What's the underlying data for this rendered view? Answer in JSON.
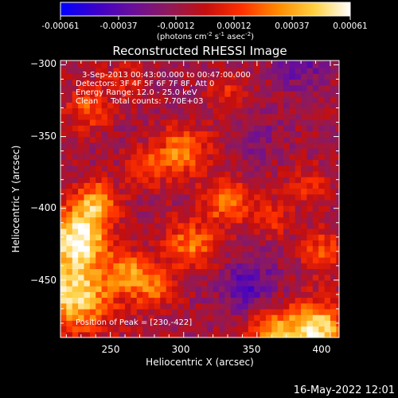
{
  "colorbar": {
    "ticks": [
      "-0.00061",
      "-0.00037",
      "-0.00012",
      "0.00012",
      "0.00037",
      "0.00061"
    ],
    "unit_main": "(photons cm",
    "unit_sup1": "-2",
    "unit_mid1": " s",
    "unit_sup2": "-1",
    "unit_mid2": " asec",
    "unit_sup3": "-2",
    "unit_end": ")",
    "colors": [
      "#0000ff",
      "#3d00c8",
      "#6a0f9a",
      "#8f1a5a",
      "#c40f0f",
      "#ff3000",
      "#ff8a00",
      "#ffd040",
      "#ffffff"
    ]
  },
  "chart_data": {
    "type": "heatmap",
    "title": "Reconstructed RHESSI Image",
    "xlabel": "Heliocentric X (arcsec)",
    "ylabel": "Heliocentric Y (arcsec)",
    "xlim": [
      216,
      406
    ],
    "ylim": [
      -490,
      -297
    ],
    "x_ticks": [
      250,
      300,
      350,
      400
    ],
    "y_ticks": [
      -300,
      -350,
      -400,
      -450
    ],
    "x_tick_labels": [
      "250",
      "300",
      "350",
      "400"
    ],
    "y_tick_labels": [
      "−300",
      "−350",
      "−400",
      "−450"
    ],
    "info_lines": [
      "3-Sep-2013 00:43:00.000 to 00:47:00.000",
      "Detectors: 3F 4F 5F 6F 7F 8F, Att 0",
      "Energy Range: 12.0 - 25.0 keV",
      "Clean     Total counts: 7.70E+03"
    ],
    "peak_label": "Position of Peak = [230,-422]",
    "peak": [
      230,
      -422
    ],
    "blobs": [
      {
        "x": 228,
        "y": -420,
        "amp": 1.0,
        "s": 14
      },
      {
        "x": 225,
        "y": -460,
        "amp": 0.9,
        "s": 18
      },
      {
        "x": 240,
        "y": -395,
        "amp": 0.65,
        "s": 10
      },
      {
        "x": 262,
        "y": -445,
        "amp": 0.55,
        "s": 10
      },
      {
        "x": 390,
        "y": -485,
        "amp": 0.95,
        "s": 14
      },
      {
        "x": 360,
        "y": -485,
        "amp": 0.6,
        "s": 12
      },
      {
        "x": 300,
        "y": -360,
        "amp": 0.6,
        "s": 12
      },
      {
        "x": 275,
        "y": -370,
        "amp": 0.45,
        "s": 9
      },
      {
        "x": 330,
        "y": -395,
        "amp": 0.55,
        "s": 11
      },
      {
        "x": 235,
        "y": -330,
        "amp": 0.45,
        "s": 10
      },
      {
        "x": 305,
        "y": -425,
        "amp": 0.55,
        "s": 12
      },
      {
        "x": 280,
        "y": -455,
        "amp": 0.45,
        "s": 10
      },
      {
        "x": 395,
        "y": -430,
        "amp": 0.45,
        "s": 10
      },
      {
        "x": 360,
        "y": -405,
        "amp": 0.35,
        "s": 9
      },
      {
        "x": 385,
        "y": -385,
        "amp": 0.35,
        "s": 9
      },
      {
        "x": 330,
        "y": -320,
        "amp": 0.3,
        "s": 9
      },
      {
        "x": 260,
        "y": -310,
        "amp": 0.3,
        "s": 9
      }
    ],
    "dips": [
      {
        "x": 345,
        "y": -455,
        "amp": 0.45,
        "s": 14
      },
      {
        "x": 380,
        "y": -300,
        "amp": 0.35,
        "s": 12
      },
      {
        "x": 350,
        "y": -350,
        "amp": 0.25,
        "s": 10
      }
    ]
  },
  "footer": {
    "timestamp": "16-May-2022 12:01"
  }
}
